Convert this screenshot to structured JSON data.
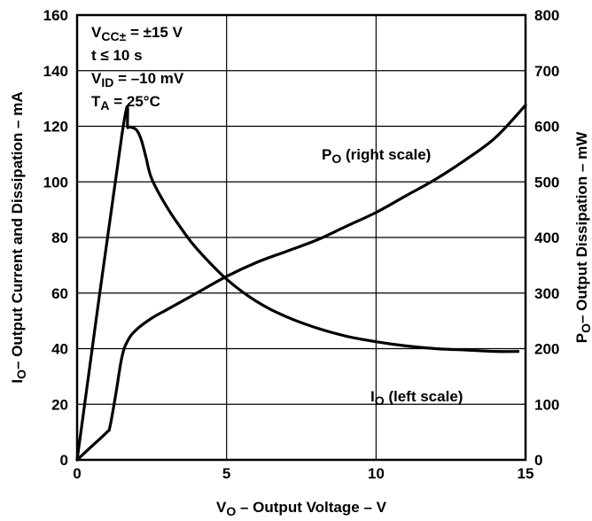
{
  "chart_data": {
    "type": "line",
    "x_ticks": [
      "0",
      "5",
      "10",
      "15"
    ],
    "y_left_ticks": [
      "0",
      "20",
      "40",
      "60",
      "80",
      "100",
      "120",
      "140",
      "160"
    ],
    "y_right_ticks": [
      "0",
      "100",
      "200",
      "300",
      "400",
      "500",
      "600",
      "700",
      "800"
    ],
    "xlim": [
      0,
      15
    ],
    "ylim_left": [
      0,
      160
    ],
    "ylim_right": [
      0,
      800
    ],
    "grid": true,
    "xlabel": {
      "main": "V",
      "sub": "O",
      "rest": " – Output Voltage – V"
    },
    "ylabel_left": {
      "main": "I",
      "sub": "O",
      "rest": "– Output Current and Dissipation – mA"
    },
    "ylabel_right": {
      "main": "P",
      "sub": "O",
      "rest": "– Output Dissipation – mW"
    },
    "conditions": [
      {
        "main": "V",
        "sub": "CC±",
        "rest": " = ±15 V"
      },
      {
        "main": "t ≤ 10 s",
        "sub": "",
        "rest": ""
      },
      {
        "main": "V",
        "sub": "ID",
        "rest": " = –10 mV"
      },
      {
        "main": "T",
        "sub": "A",
        "rest": " = 25°C"
      }
    ],
    "series": [
      {
        "label": {
          "main": "I",
          "sub": "O",
          "rest": " (left scale)"
        },
        "axis": "left",
        "x": [
          0,
          1.5,
          1.7,
          1.85,
          2.0,
          2.15,
          2.3,
          2.5,
          3,
          3.5,
          4,
          5,
          6,
          7,
          8,
          9,
          10,
          11,
          12,
          13,
          14,
          14.75
        ],
        "y": [
          0,
          117,
          119.5,
          119.5,
          118.5,
          115,
          109,
          101,
          91,
          83,
          76,
          65,
          57,
          51.5,
          47.5,
          44.5,
          42.5,
          41,
          40,
          39.5,
          39,
          39
        ]
      },
      {
        "label": {
          "main": "P",
          "sub": "O",
          "rest": " (right scale)"
        },
        "axis": "right",
        "x": [
          0,
          0.5,
          1.0,
          1.1,
          1.3,
          1.5,
          1.7,
          2.0,
          2.5,
          3,
          4,
          5,
          6,
          7,
          8,
          9,
          10,
          11,
          12,
          13,
          14,
          15
        ],
        "y": [
          0,
          25,
          50,
          60,
          120,
          185,
          215,
          235,
          255,
          270,
          300,
          330,
          355,
          375,
          395,
          420,
          445,
          475,
          505,
          540,
          580,
          638
        ]
      }
    ]
  }
}
